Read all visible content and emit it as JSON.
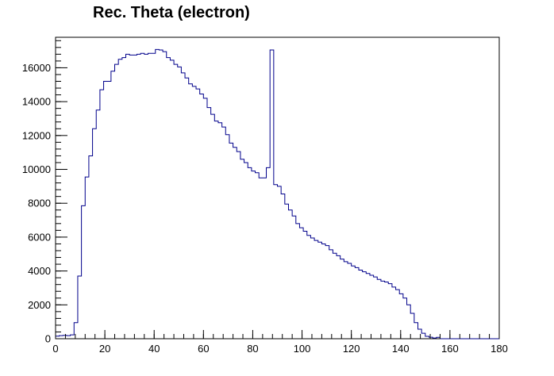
{
  "chart_data": {
    "type": "histogram",
    "title": "Rec. Theta (electron)",
    "xlabel": "",
    "ylabel": "",
    "xlim": [
      0,
      180
    ],
    "ylim": [
      0,
      17800
    ],
    "bin_width": 1.5,
    "x_ticks": [
      0,
      20,
      40,
      60,
      80,
      100,
      120,
      140,
      160,
      180
    ],
    "y_ticks": [
      0,
      2000,
      4000,
      6000,
      8000,
      10000,
      12000,
      14000,
      16000
    ],
    "line_color": "#00008b",
    "grid": false,
    "bins": [
      [
        0,
        150
      ],
      [
        1.5,
        180
      ],
      [
        3,
        200
      ],
      [
        4.5,
        180
      ],
      [
        6,
        230
      ],
      [
        7.5,
        950
      ],
      [
        9,
        3700
      ],
      [
        10.5,
        7850
      ],
      [
        12,
        9550
      ],
      [
        13.5,
        10800
      ],
      [
        15,
        12400
      ],
      [
        16.5,
        13500
      ],
      [
        18,
        14700
      ],
      [
        19.5,
        15200
      ],
      [
        21,
        15200
      ],
      [
        22.5,
        15800
      ],
      [
        24,
        16200
      ],
      [
        25.5,
        16500
      ],
      [
        27,
        16600
      ],
      [
        28.5,
        16800
      ],
      [
        30,
        16750
      ],
      [
        31.5,
        16750
      ],
      [
        33,
        16800
      ],
      [
        34.5,
        16850
      ],
      [
        36,
        16800
      ],
      [
        37.5,
        16850
      ],
      [
        39,
        16850
      ],
      [
        40.5,
        17080
      ],
      [
        42,
        17050
      ],
      [
        43.5,
        16950
      ],
      [
        45,
        16600
      ],
      [
        46.5,
        16450
      ],
      [
        48,
        16200
      ],
      [
        49.5,
        16050
      ],
      [
        51,
        15700
      ],
      [
        52.5,
        15400
      ],
      [
        54,
        15050
      ],
      [
        55.5,
        14900
      ],
      [
        57,
        14750
      ],
      [
        58.5,
        14450
      ],
      [
        60,
        14200
      ],
      [
        61.5,
        13650
      ],
      [
        63,
        13250
      ],
      [
        64.5,
        12850
      ],
      [
        66,
        12750
      ],
      [
        67.5,
        12500
      ],
      [
        69,
        12050
      ],
      [
        70.5,
        11550
      ],
      [
        72,
        11300
      ],
      [
        73.5,
        11050
      ],
      [
        75,
        10600
      ],
      [
        76.5,
        10400
      ],
      [
        78,
        10100
      ],
      [
        79.5,
        9900
      ],
      [
        81,
        9800
      ],
      [
        82.5,
        9500
      ],
      [
        84,
        9500
      ],
      [
        85.5,
        10100
      ],
      [
        87,
        17050
      ],
      [
        88.5,
        9100
      ],
      [
        90,
        9000
      ],
      [
        91.5,
        8550
      ],
      [
        93,
        7950
      ],
      [
        94.5,
        7600
      ],
      [
        96,
        7250
      ],
      [
        97.5,
        6800
      ],
      [
        99,
        6550
      ],
      [
        100.5,
        6350
      ],
      [
        102,
        6100
      ],
      [
        103.5,
        5950
      ],
      [
        105,
        5800
      ],
      [
        106.5,
        5700
      ],
      [
        108,
        5600
      ],
      [
        109.5,
        5500
      ],
      [
        111,
        5250
      ],
      [
        112.5,
        5050
      ],
      [
        114,
        4900
      ],
      [
        115.5,
        4700
      ],
      [
        117,
        4550
      ],
      [
        118.5,
        4450
      ],
      [
        120,
        4300
      ],
      [
        121.5,
        4200
      ],
      [
        123,
        4050
      ],
      [
        124.5,
        3950
      ],
      [
        126,
        3850
      ],
      [
        127.5,
        3750
      ],
      [
        129,
        3650
      ],
      [
        130.5,
        3500
      ],
      [
        132,
        3400
      ],
      [
        133.5,
        3350
      ],
      [
        135,
        3250
      ],
      [
        136.5,
        3050
      ],
      [
        138,
        2900
      ],
      [
        139.5,
        2650
      ],
      [
        141,
        2400
      ],
      [
        142.5,
        2000
      ],
      [
        144,
        1500
      ],
      [
        145.5,
        950
      ],
      [
        147,
        560
      ],
      [
        148.5,
        320
      ],
      [
        150,
        140
      ],
      [
        151.5,
        90
      ],
      [
        153,
        40
      ],
      [
        154.5,
        80
      ],
      [
        156,
        0
      ],
      [
        157.5,
        0
      ],
      [
        159,
        0
      ],
      [
        160.5,
        0
      ],
      [
        162,
        0
      ],
      [
        163.5,
        0
      ],
      [
        165,
        0
      ],
      [
        166.5,
        0
      ],
      [
        168,
        0
      ],
      [
        169.5,
        0
      ],
      [
        171,
        0
      ],
      [
        172.5,
        0
      ],
      [
        174,
        0
      ],
      [
        175.5,
        0
      ],
      [
        177,
        0
      ],
      [
        178.5,
        0
      ]
    ]
  }
}
